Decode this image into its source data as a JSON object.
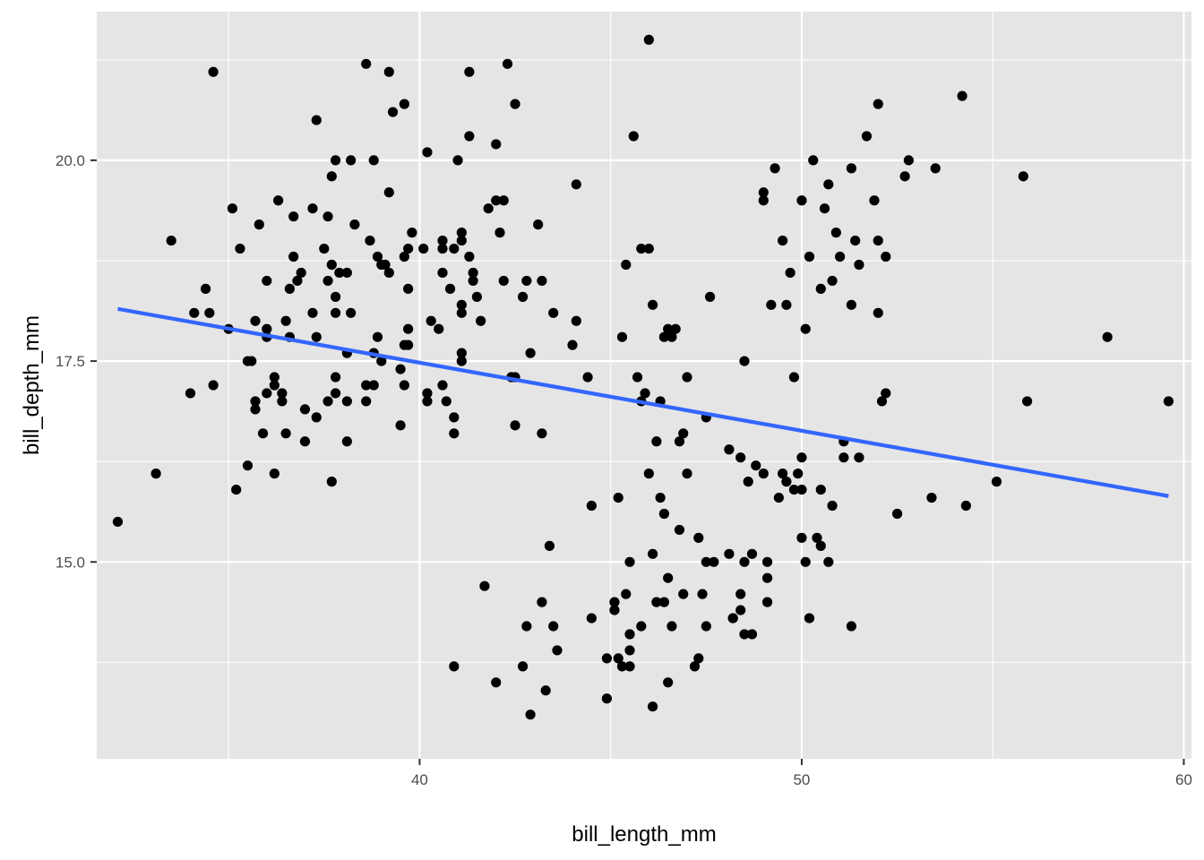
{
  "chart_data": {
    "type": "scatter",
    "title": "",
    "xlabel": "bill_length_mm",
    "ylabel": "bill_depth_mm",
    "xlim": [
      31.55,
      60.2
    ],
    "ylim": [
      12.55,
      21.85
    ],
    "x_ticks": [
      40,
      50,
      60
    ],
    "x_tick_labels": [
      "40",
      "50",
      "60"
    ],
    "y_ticks": [
      15.0,
      17.5,
      20.0
    ],
    "y_tick_labels": [
      "15.0",
      "17.5",
      "20.0"
    ],
    "grid": true,
    "legend": "none",
    "colors": {
      "panel": "#e5e5e5",
      "grid": "#ffffff",
      "points": "#000000",
      "trend": "#3366ff",
      "tick_text": "#4d4d4d"
    },
    "trend_line": {
      "method": "lm",
      "x": [
        32.1,
        59.6
      ],
      "y": [
        18.15,
        15.82
      ]
    },
    "points": [
      [
        32.1,
        15.5
      ],
      [
        33.1,
        16.1
      ],
      [
        33.5,
        19.0
      ],
      [
        34.0,
        17.1
      ],
      [
        34.1,
        18.1
      ],
      [
        34.4,
        18.4
      ],
      [
        34.5,
        18.1
      ],
      [
        34.6,
        21.1
      ],
      [
        34.6,
        17.2
      ],
      [
        35.0,
        17.9
      ],
      [
        35.1,
        19.4
      ],
      [
        35.2,
        15.9
      ],
      [
        35.3,
        18.9
      ],
      [
        35.5,
        16.2
      ],
      [
        35.5,
        17.5
      ],
      [
        35.6,
        17.5
      ],
      [
        35.7,
        18.0
      ],
      [
        35.7,
        17.0
      ],
      [
        35.7,
        16.9
      ],
      [
        35.8,
        19.2
      ],
      [
        35.9,
        16.6
      ],
      [
        36.0,
        18.5
      ],
      [
        36.0,
        17.9
      ],
      [
        36.0,
        17.8
      ],
      [
        36.0,
        17.1
      ],
      [
        36.2,
        16.1
      ],
      [
        36.2,
        17.3
      ],
      [
        36.2,
        17.2
      ],
      [
        36.3,
        19.5
      ],
      [
        36.4,
        17.1
      ],
      [
        36.4,
        17.0
      ],
      [
        36.5,
        16.6
      ],
      [
        36.5,
        18.0
      ],
      [
        36.6,
        17.8
      ],
      [
        36.6,
        18.4
      ],
      [
        36.7,
        18.8
      ],
      [
        36.7,
        19.3
      ],
      [
        36.8,
        18.5
      ],
      [
        36.9,
        18.6
      ],
      [
        37.0,
        16.5
      ],
      [
        37.0,
        16.9
      ],
      [
        37.2,
        18.1
      ],
      [
        37.2,
        19.4
      ],
      [
        37.3,
        20.5
      ],
      [
        37.3,
        16.8
      ],
      [
        37.3,
        17.8
      ],
      [
        37.5,
        18.9
      ],
      [
        37.6,
        18.5
      ],
      [
        37.6,
        17.0
      ],
      [
        37.6,
        19.3
      ],
      [
        37.7,
        16.0
      ],
      [
        37.7,
        18.7
      ],
      [
        37.7,
        19.8
      ],
      [
        37.8,
        18.3
      ],
      [
        37.8,
        17.1
      ],
      [
        37.8,
        18.1
      ],
      [
        37.8,
        20.0
      ],
      [
        37.8,
        17.3
      ],
      [
        37.9,
        18.6
      ],
      [
        38.1,
        18.6
      ],
      [
        38.1,
        17.6
      ],
      [
        38.1,
        17.0
      ],
      [
        38.1,
        16.5
      ],
      [
        38.2,
        18.1
      ],
      [
        38.2,
        20.0
      ],
      [
        38.3,
        19.2
      ],
      [
        38.6,
        17.2
      ],
      [
        38.6,
        21.2
      ],
      [
        38.6,
        17.0
      ],
      [
        38.7,
        19.0
      ],
      [
        38.8,
        17.2
      ],
      [
        38.8,
        17.6
      ],
      [
        38.8,
        20.0
      ],
      [
        38.9,
        17.8
      ],
      [
        38.9,
        18.8
      ],
      [
        39.0,
        17.5
      ],
      [
        39.0,
        18.7
      ],
      [
        39.1,
        18.7
      ],
      [
        39.2,
        18.6
      ],
      [
        39.2,
        19.6
      ],
      [
        39.2,
        21.1
      ],
      [
        39.3,
        20.6
      ],
      [
        39.5,
        17.4
      ],
      [
        39.5,
        16.7
      ],
      [
        39.6,
        17.7
      ],
      [
        39.6,
        17.2
      ],
      [
        39.6,
        18.8
      ],
      [
        39.6,
        20.7
      ],
      [
        39.7,
        18.4
      ],
      [
        39.7,
        17.7
      ],
      [
        39.7,
        18.9
      ],
      [
        39.7,
        17.9
      ],
      [
        39.8,
        19.1
      ],
      [
        40.1,
        18.9
      ],
      [
        40.2,
        17.0
      ],
      [
        40.2,
        17.1
      ],
      [
        40.2,
        20.1
      ],
      [
        40.3,
        18.0
      ],
      [
        40.5,
        17.9
      ],
      [
        40.6,
        18.9
      ],
      [
        40.6,
        17.2
      ],
      [
        40.6,
        18.6
      ],
      [
        40.6,
        19.0
      ],
      [
        40.7,
        17.0
      ],
      [
        40.8,
        18.4
      ],
      [
        40.9,
        16.8
      ],
      [
        40.9,
        16.6
      ],
      [
        40.9,
        18.9
      ],
      [
        41.0,
        20.0
      ],
      [
        41.1,
        19.0
      ],
      [
        41.1,
        18.1
      ],
      [
        41.1,
        17.6
      ],
      [
        41.1,
        17.5
      ],
      [
        41.1,
        18.2
      ],
      [
        41.1,
        19.1
      ],
      [
        41.3,
        18.8
      ],
      [
        41.3,
        20.3
      ],
      [
        41.3,
        21.1
      ],
      [
        41.4,
        18.6
      ],
      [
        41.4,
        18.5
      ],
      [
        41.5,
        18.3
      ],
      [
        41.6,
        18.0
      ],
      [
        41.8,
        19.4
      ],
      [
        42.0,
        19.5
      ],
      [
        42.0,
        20.2
      ],
      [
        42.1,
        19.1
      ],
      [
        42.2,
        18.5
      ],
      [
        42.2,
        19.5
      ],
      [
        42.3,
        21.2
      ],
      [
        42.4,
        17.3
      ],
      [
        42.5,
        16.7
      ],
      [
        42.5,
        20.7
      ],
      [
        42.5,
        17.3
      ],
      [
        42.7,
        18.3
      ],
      [
        42.8,
        18.5
      ],
      [
        42.9,
        17.6
      ],
      [
        43.1,
        19.2
      ],
      [
        43.2,
        18.5
      ],
      [
        43.2,
        16.6
      ],
      [
        43.5,
        18.1
      ],
      [
        44.0,
        17.7
      ],
      [
        44.1,
        19.7
      ],
      [
        44.1,
        18.0
      ],
      [
        44.4,
        17.3
      ],
      [
        44.5,
        15.7
      ],
      [
        45.1,
        14.5
      ],
      [
        45.5,
        13.9
      ],
      [
        45.5,
        15.0
      ],
      [
        45.6,
        20.3
      ],
      [
        45.7,
        17.3
      ],
      [
        45.8,
        18.9
      ],
      [
        46.0,
        21.5
      ],
      [
        46.0,
        18.9
      ],
      [
        46.1,
        18.2
      ],
      [
        46.4,
        17.8
      ],
      [
        46.5,
        17.9
      ],
      [
        46.6,
        17.8
      ],
      [
        46.7,
        17.9
      ],
      [
        46.8,
        16.5
      ],
      [
        47.0,
        17.3
      ],
      [
        47.5,
        16.8
      ],
      [
        47.6,
        18.3
      ],
      [
        48.1,
        16.4
      ],
      [
        48.4,
        16.3
      ],
      [
        48.5,
        17.5
      ],
      [
        49.0,
        19.5
      ],
      [
        49.0,
        19.6
      ],
      [
        49.2,
        18.2
      ],
      [
        49.3,
        19.9
      ],
      [
        49.5,
        19.0
      ],
      [
        49.6,
        18.2
      ],
      [
        49.7,
        18.6
      ],
      [
        49.8,
        17.3
      ],
      [
        50.0,
        19.5
      ],
      [
        50.1,
        17.9
      ],
      [
        50.2,
        18.8
      ],
      [
        50.3,
        20.0
      ],
      [
        50.5,
        18.4
      ],
      [
        50.6,
        19.4
      ],
      [
        50.7,
        19.7
      ],
      [
        50.8,
        18.5
      ],
      [
        50.9,
        19.1
      ],
      [
        51.0,
        18.8
      ],
      [
        51.3,
        19.9
      ],
      [
        51.3,
        18.2
      ],
      [
        51.4,
        19.0
      ],
      [
        51.5,
        18.7
      ],
      [
        51.7,
        20.3
      ],
      [
        51.9,
        19.5
      ],
      [
        52.0,
        19.0
      ],
      [
        52.0,
        18.1
      ],
      [
        52.0,
        20.7
      ],
      [
        52.2,
        18.8
      ],
      [
        52.7,
        19.8
      ],
      [
        52.8,
        20.0
      ],
      [
        53.5,
        19.9
      ],
      [
        54.2,
        20.8
      ],
      [
        55.8,
        19.8
      ],
      [
        58.0,
        17.8
      ],
      [
        40.9,
        13.7
      ],
      [
        41.7,
        14.7
      ],
      [
        42.0,
        13.5
      ],
      [
        42.7,
        13.7
      ],
      [
        42.8,
        14.2
      ],
      [
        42.9,
        13.1
      ],
      [
        43.2,
        14.5
      ],
      [
        43.3,
        13.4
      ],
      [
        43.5,
        14.2
      ],
      [
        43.6,
        13.9
      ],
      [
        44.9,
        13.3
      ],
      [
        45.2,
        13.8
      ],
      [
        45.3,
        13.7
      ],
      [
        45.5,
        13.7
      ],
      [
        46.1,
        13.2
      ],
      [
        46.2,
        14.5
      ],
      [
        46.4,
        14.5
      ],
      [
        46.5,
        13.5
      ],
      [
        46.9,
        14.6
      ],
      [
        47.2,
        13.7
      ],
      [
        47.5,
        14.2
      ],
      [
        48.2,
        14.3
      ],
      [
        48.4,
        14.4
      ],
      [
        48.7,
        14.1
      ],
      [
        49.1,
        14.5
      ],
      [
        49.1,
        14.8
      ],
      [
        50.2,
        14.3
      ],
      [
        51.3,
        14.2
      ],
      [
        43.4,
        15.2
      ],
      [
        44.5,
        14.3
      ],
      [
        45.1,
        14.4
      ],
      [
        45.4,
        14.6
      ],
      [
        45.5,
        14.1
      ],
      [
        45.8,
        14.2
      ],
      [
        46.1,
        15.1
      ],
      [
        46.3,
        15.8
      ],
      [
        46.4,
        15.6
      ],
      [
        46.5,
        14.8
      ],
      [
        46.6,
        14.2
      ],
      [
        46.8,
        15.4
      ],
      [
        47.3,
        15.3
      ],
      [
        47.4,
        14.6
      ],
      [
        47.7,
        15.0
      ],
      [
        48.2,
        14.3
      ],
      [
        48.4,
        14.6
      ],
      [
        48.7,
        15.1
      ],
      [
        49.1,
        15.0
      ],
      [
        49.4,
        15.8
      ],
      [
        49.5,
        16.1
      ],
      [
        49.6,
        16.0
      ],
      [
        49.8,
        15.9
      ],
      [
        50.0,
        15.3
      ],
      [
        50.0,
        15.9
      ],
      [
        50.1,
        15.0
      ],
      [
        50.4,
        15.3
      ],
      [
        50.5,
        15.2
      ],
      [
        50.7,
        15.0
      ],
      [
        51.1,
        16.3
      ],
      [
        51.5,
        16.3
      ],
      [
        52.1,
        17.0
      ],
      [
        52.2,
        17.1
      ],
      [
        53.4,
        15.8
      ],
      [
        54.3,
        15.7
      ],
      [
        55.1,
        16.0
      ],
      [
        55.9,
        17.0
      ],
      [
        59.6,
        17.0
      ],
      [
        45.2,
        15.8
      ],
      [
        45.3,
        17.8
      ],
      [
        45.4,
        18.7
      ],
      [
        46.0,
        16.1
      ],
      [
        46.2,
        16.5
      ],
      [
        46.9,
        16.6
      ],
      [
        47.0,
        16.1
      ],
      [
        47.5,
        15.0
      ],
      [
        48.1,
        15.1
      ],
      [
        48.5,
        15.0
      ],
      [
        48.6,
        16.0
      ],
      [
        48.8,
        16.2
      ],
      [
        49.0,
        16.1
      ],
      [
        49.9,
        16.1
      ],
      [
        50.0,
        16.3
      ],
      [
        50.5,
        15.9
      ],
      [
        50.8,
        15.7
      ],
      [
        51.1,
        16.5
      ],
      [
        52.5,
        15.6
      ],
      [
        44.9,
        13.8
      ],
      [
        45.9,
        17.1
      ],
      [
        46.3,
        17.0
      ],
      [
        45.8,
        17.0
      ],
      [
        47.3,
        13.8
      ],
      [
        48.5,
        14.1
      ]
    ]
  }
}
